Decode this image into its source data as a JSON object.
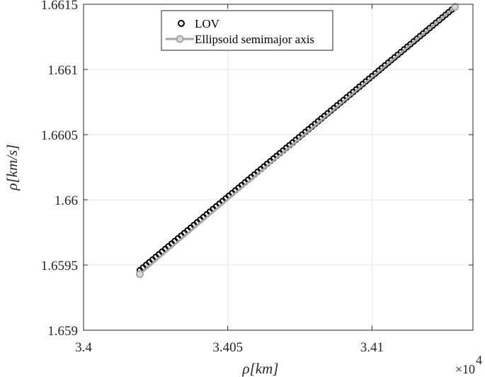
{
  "chart_data": {
    "type": "line",
    "title": "",
    "xlabel": "ρ[km]",
    "ylabel": "ρ̇[km/s]",
    "x_exponent_label": "×10",
    "x_exponent_power": "4",
    "x_scale_factor": 10000,
    "xlim": [
      34000,
      34135
    ],
    "ylim": [
      1.659,
      1.6615
    ],
    "x_ticks": [
      34000,
      34050,
      34100
    ],
    "x_tick_labels": [
      "3.4",
      "3.405",
      "3.41"
    ],
    "y_ticks": [
      1.659,
      1.6595,
      1.66,
      1.6605,
      1.661,
      1.6615
    ],
    "y_tick_labels": [
      "1.659",
      "1.6595",
      "1.66",
      "1.6605",
      "1.661",
      "1.6615"
    ],
    "grid": true,
    "legend_position": "top",
    "series": [
      {
        "name": "LOV",
        "style": "markers",
        "marker": "circle-open",
        "color": "#000000",
        "x_start": 34019.5,
        "x_end": 34128.8,
        "y_start": 1.65946,
        "y_end": 1.66148,
        "n_points": 100
      },
      {
        "name": "Ellipsoid semimajor axis",
        "style": "line-markers",
        "marker": "circle",
        "color": "#a6a6a6",
        "x": [
          34019.5,
          34128.8
        ],
        "y": [
          1.65943,
          1.66148
        ]
      }
    ]
  }
}
